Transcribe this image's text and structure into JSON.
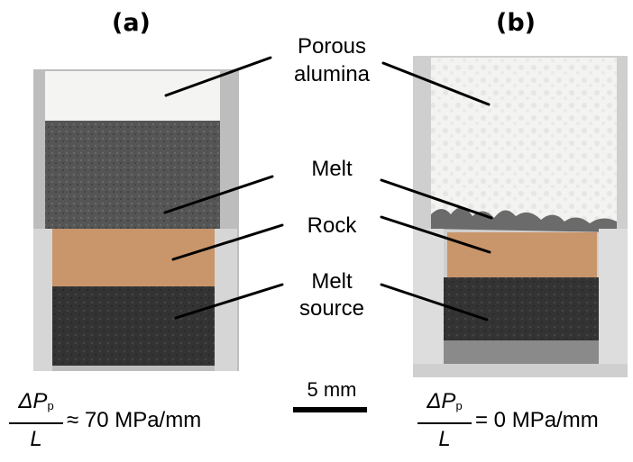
{
  "panels": {
    "a": {
      "label": "(a)",
      "equation": {
        "numerator": "ΔP",
        "subscript": "p",
        "denominator": "L",
        "relation": "≈ 70 MPa/mm"
      }
    },
    "b": {
      "label": "(b)",
      "equation": {
        "numerator": "ΔP",
        "subscript": "p",
        "denominator": "L",
        "relation": "= 0 MPa/mm"
      }
    }
  },
  "labels": {
    "porous": "Porous",
    "alumina": "alumina",
    "melt": "Melt",
    "rock": "Rock",
    "melt_source_1": "Melt",
    "melt_source_2": "source"
  },
  "scale_bar": {
    "label": "5 mm"
  },
  "colors": {
    "rock": "#c9956a",
    "alumina": "#f2f2f0",
    "melt": "#4a4a4a",
    "source": "#2f2f2f"
  }
}
